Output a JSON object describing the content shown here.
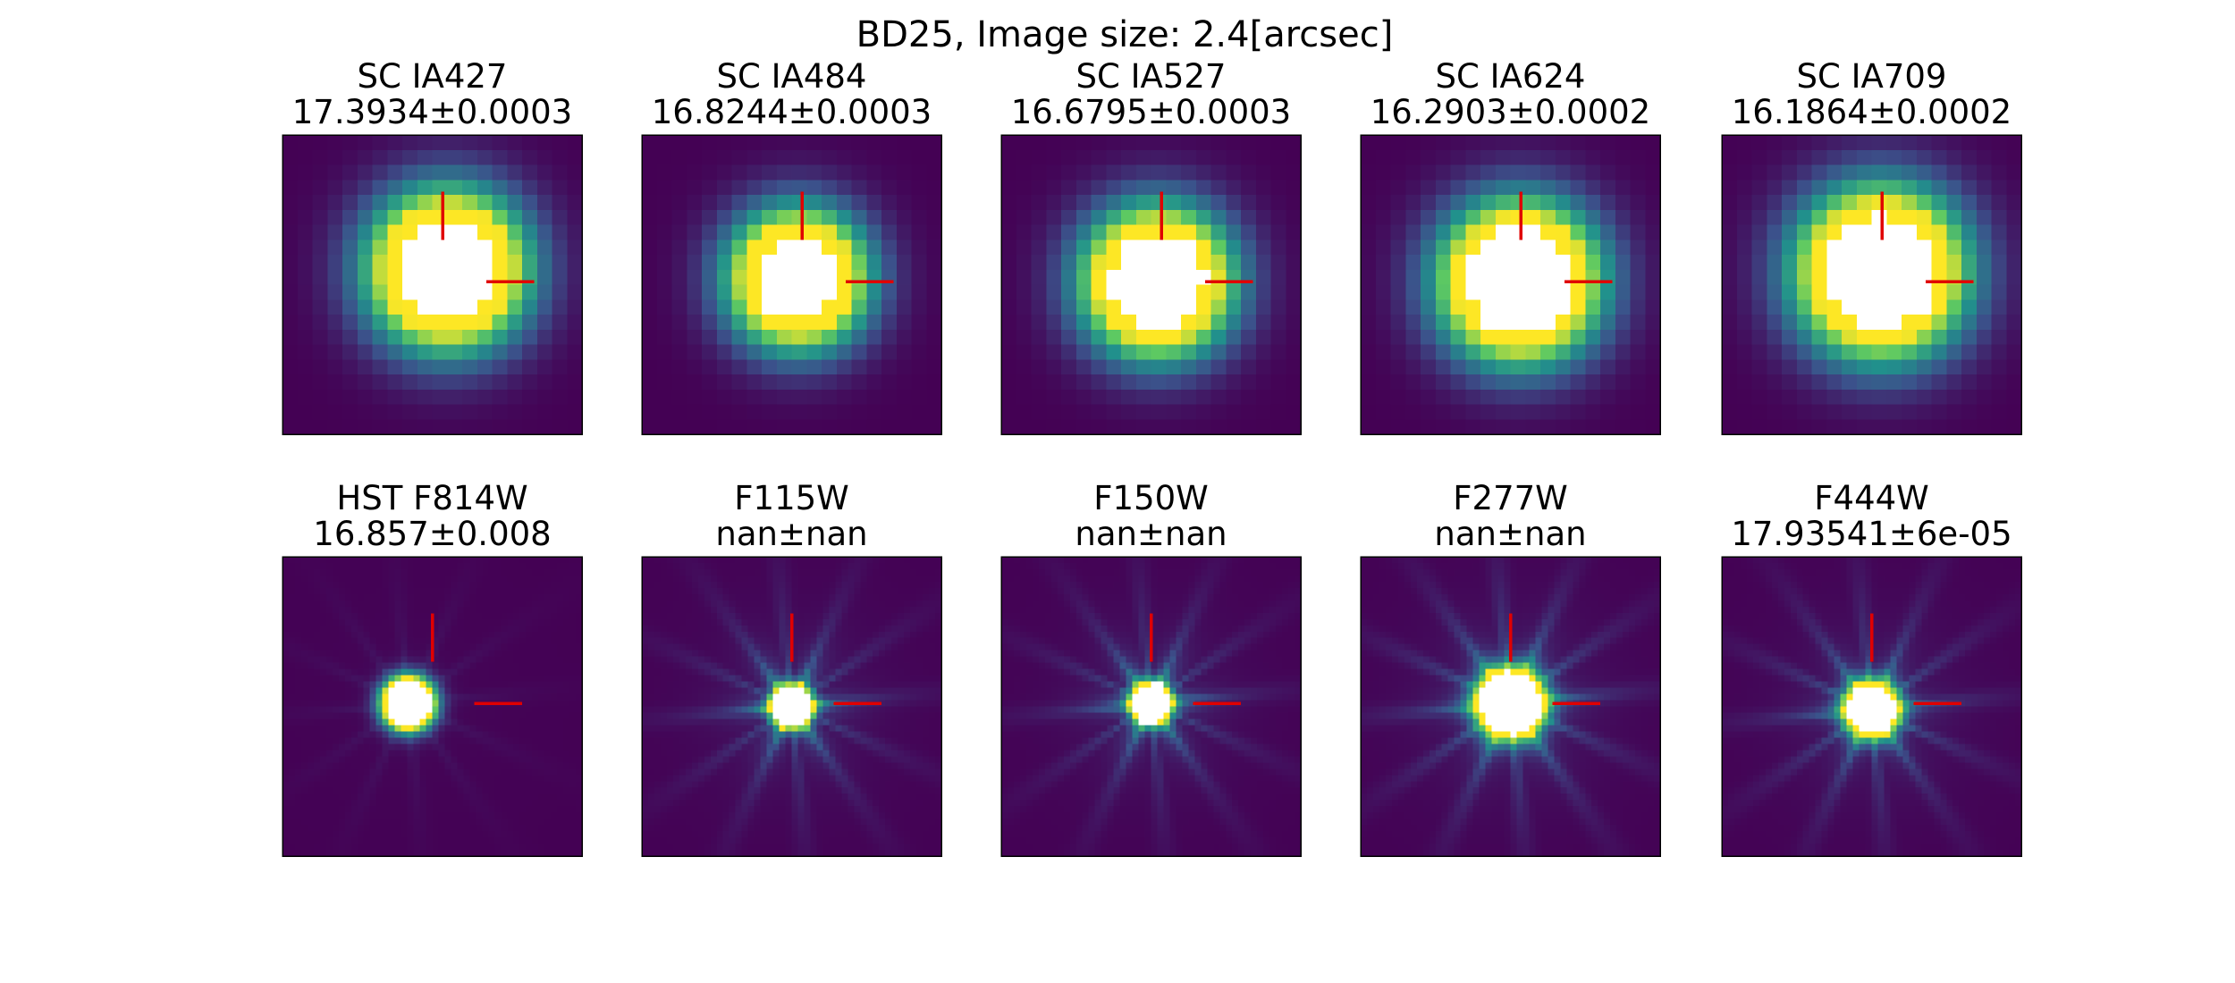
{
  "title": "BD25,  Image size: 2.4[arcsec]",
  "panels": [
    {
      "filter": "SC IA427",
      "magnitude": "17.3934±0.0003"
    },
    {
      "filter": "SC IA484",
      "magnitude": "16.8244±0.0003"
    },
    {
      "filter": "SC IA527",
      "magnitude": "16.6795±0.0003"
    },
    {
      "filter": "SC IA624",
      "magnitude": "16.2903±0.0002"
    },
    {
      "filter": "SC IA709",
      "magnitude": "16.1864±0.0002"
    },
    {
      "filter": "HST F814W",
      "magnitude": "16.857±0.008"
    },
    {
      "filter": "F115W",
      "magnitude": "nan±nan"
    },
    {
      "filter": "F150W",
      "magnitude": "nan±nan"
    },
    {
      "filter": "F277W",
      "magnitude": "nan±nan"
    },
    {
      "filter": "F444W",
      "magnitude": "17.93541±6e-05"
    }
  ]
}
